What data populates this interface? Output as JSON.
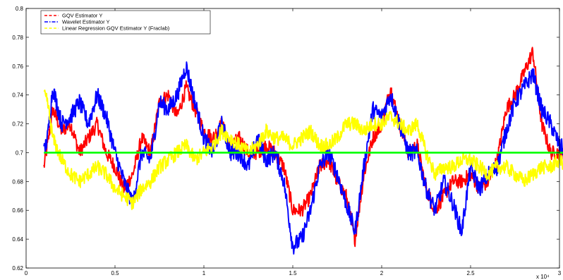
{
  "chart_data": {
    "type": "line",
    "xlim": [
      0,
      3
    ],
    "ylim": [
      0.62,
      0.8
    ],
    "x_ticks": [
      0,
      0.5,
      1,
      1.5,
      2,
      2.5,
      3
    ],
    "x_tick_labels": [
      "0",
      "0.5",
      "1",
      "1.5",
      "2",
      "2.5",
      "3"
    ],
    "x_exponent_label": "x 10⁴",
    "y_ticks": [
      0.62,
      0.64,
      0.66,
      0.68,
      0.7,
      0.72,
      0.74,
      0.76,
      0.78,
      0.8
    ],
    "y_tick_labels": [
      "0.62",
      "0.64",
      "0.66",
      "0.68",
      "0.7",
      "0.72",
      "0.74",
      "0.76",
      "0.78",
      "0.8"
    ],
    "grid": false,
    "legend_position": "top-left",
    "legend": [
      {
        "label": "GQV Estimator Y",
        "color": "#ff0000",
        "style": "dashed"
      },
      {
        "label": "Wavelet Estimator Y",
        "color": "#0000ff",
        "style": "dash-dot"
      },
      {
        "label": "Linear Regression GQV Estimator Y (Fraclab)",
        "color": "#ffff00",
        "style": "dashed"
      }
    ],
    "series": [
      {
        "legend_index": 0,
        "color": "#ff0000",
        "noise": 0.005,
        "x": [
          0.1,
          0.12,
          0.15,
          0.2,
          0.25,
          0.3,
          0.35,
          0.4,
          0.45,
          0.5,
          0.55,
          0.6,
          0.65,
          0.7,
          0.75,
          0.8,
          0.85,
          0.9,
          0.95,
          1.0,
          1.05,
          1.1,
          1.15,
          1.2,
          1.25,
          1.3,
          1.35,
          1.4,
          1.45,
          1.5,
          1.55,
          1.6,
          1.65,
          1.7,
          1.75,
          1.8,
          1.85,
          1.9,
          1.95,
          2.0,
          2.05,
          2.1,
          2.15,
          2.2,
          2.25,
          2.3,
          2.35,
          2.4,
          2.45,
          2.5,
          2.55,
          2.6,
          2.65,
          2.7,
          2.75,
          2.8,
          2.85,
          2.9,
          2.95,
          3.0,
          3.05,
          3.1,
          3.15
        ],
        "y": [
          0.69,
          0.705,
          0.73,
          0.715,
          0.72,
          0.7,
          0.71,
          0.72,
          0.7,
          0.69,
          0.675,
          0.685,
          0.71,
          0.7,
          0.735,
          0.74,
          0.725,
          0.745,
          0.73,
          0.715,
          0.71,
          0.72,
          0.705,
          0.71,
          0.7,
          0.7,
          0.705,
          0.7,
          0.69,
          0.66,
          0.66,
          0.67,
          0.69,
          0.695,
          0.68,
          0.67,
          0.64,
          0.685,
          0.71,
          0.72,
          0.745,
          0.72,
          0.7,
          0.705,
          0.675,
          0.66,
          0.67,
          0.68,
          0.68,
          0.685,
          0.675,
          0.68,
          0.695,
          0.73,
          0.74,
          0.755,
          0.77,
          0.72,
          0.7,
          0.7,
          0.695,
          0.7,
          0.69
        ]
      },
      {
        "legend_index": 1,
        "color": "#0000ff",
        "noise": 0.006,
        "x": [
          0.1,
          0.12,
          0.15,
          0.2,
          0.25,
          0.3,
          0.35,
          0.4,
          0.45,
          0.5,
          0.55,
          0.6,
          0.65,
          0.7,
          0.75,
          0.8,
          0.85,
          0.9,
          0.95,
          1.0,
          1.05,
          1.1,
          1.15,
          1.2,
          1.25,
          1.3,
          1.35,
          1.4,
          1.45,
          1.5,
          1.55,
          1.6,
          1.65,
          1.7,
          1.75,
          1.8,
          1.85,
          1.9,
          1.95,
          2.0,
          2.05,
          2.1,
          2.15,
          2.2,
          2.25,
          2.3,
          2.35,
          2.4,
          2.45,
          2.5,
          2.55,
          2.6,
          2.65,
          2.7,
          2.75,
          2.8,
          2.85,
          2.9,
          2.95,
          3.0,
          3.05,
          3.1,
          3.15
        ],
        "y": [
          0.7,
          0.71,
          0.745,
          0.72,
          0.725,
          0.735,
          0.72,
          0.74,
          0.725,
          0.7,
          0.68,
          0.665,
          0.7,
          0.695,
          0.735,
          0.73,
          0.74,
          0.76,
          0.735,
          0.71,
          0.7,
          0.72,
          0.7,
          0.7,
          0.69,
          0.71,
          0.695,
          0.7,
          0.68,
          0.635,
          0.64,
          0.66,
          0.69,
          0.7,
          0.685,
          0.665,
          0.645,
          0.69,
          0.73,
          0.725,
          0.74,
          0.72,
          0.7,
          0.7,
          0.675,
          0.66,
          0.68,
          0.665,
          0.645,
          0.69,
          0.675,
          0.685,
          0.69,
          0.715,
          0.735,
          0.745,
          0.755,
          0.73,
          0.72,
          0.705,
          0.7,
          0.74,
          0.72
        ]
      },
      {
        "legend_index": 2,
        "color": "#ffff00",
        "noise": 0.005,
        "x": [
          0.1,
          0.12,
          0.15,
          0.2,
          0.25,
          0.3,
          0.35,
          0.4,
          0.45,
          0.5,
          0.55,
          0.6,
          0.65,
          0.7,
          0.75,
          0.8,
          0.85,
          0.9,
          0.95,
          1.0,
          1.05,
          1.1,
          1.15,
          1.2,
          1.25,
          1.3,
          1.35,
          1.4,
          1.45,
          1.5,
          1.55,
          1.6,
          1.65,
          1.7,
          1.75,
          1.8,
          1.85,
          1.9,
          1.95,
          2.0,
          2.05,
          2.1,
          2.15,
          2.2,
          2.25,
          2.3,
          2.35,
          2.4,
          2.45,
          2.5,
          2.55,
          2.6,
          2.65,
          2.7,
          2.75,
          2.8,
          2.85,
          2.9,
          2.95,
          3.0,
          3.05,
          3.1,
          3.15
        ],
        "y": [
          0.74,
          0.735,
          0.71,
          0.695,
          0.685,
          0.68,
          0.685,
          0.69,
          0.685,
          0.675,
          0.67,
          0.665,
          0.675,
          0.68,
          0.69,
          0.695,
          0.7,
          0.705,
          0.695,
          0.7,
          0.705,
          0.715,
          0.71,
          0.705,
          0.7,
          0.705,
          0.715,
          0.71,
          0.71,
          0.705,
          0.71,
          0.715,
          0.705,
          0.705,
          0.71,
          0.72,
          0.72,
          0.715,
          0.72,
          0.72,
          0.725,
          0.72,
          0.715,
          0.72,
          0.7,
          0.685,
          0.69,
          0.69,
          0.695,
          0.695,
          0.69,
          0.685,
          0.69,
          0.69,
          0.685,
          0.68,
          0.685,
          0.69,
          0.69,
          0.695,
          0.69,
          0.695,
          0.69
        ]
      },
      {
        "color": "#00ff00",
        "noise": 0,
        "x": [
          0.1,
          3.17
        ],
        "y": [
          0.7,
          0.7
        ]
      }
    ]
  }
}
